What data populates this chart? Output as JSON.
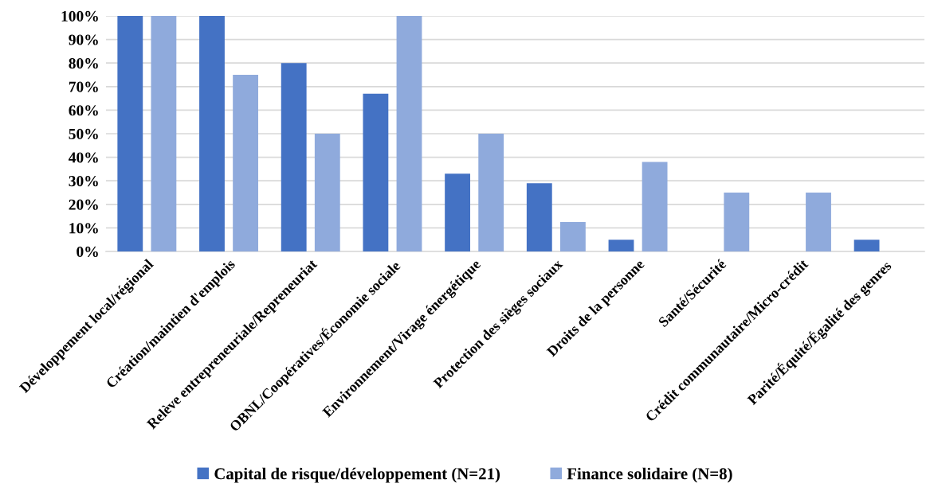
{
  "chart_data": {
    "type": "bar",
    "categories": [
      "Développement local/régional",
      "Création/maintien d'emplois",
      "Relève entrepreneuriale/Repreneuriat",
      "OBNL/Coopératives/Économie sociale",
      "Environnement/Virage énergétique",
      "Protection des sièges sociaux",
      "Droits de la personne",
      "Santé/Sécurité",
      "Crédit communautaire/Micro-crédit",
      "Parité/Équité/Égalité des genres"
    ],
    "series": [
      {
        "name": "Capital de risque/développement (N=21)",
        "color": "#4472c4",
        "values": [
          100,
          100,
          80,
          67,
          33,
          29,
          5,
          0,
          0,
          5
        ]
      },
      {
        "name": "Finance solidaire (N=8)",
        "color": "#8faadc",
        "values": [
          100,
          75,
          50,
          100,
          50,
          12.5,
          38,
          25,
          25,
          0
        ]
      }
    ],
    "ylim": [
      0,
      100
    ],
    "yticks": [
      {
        "value": 0,
        "label": "0%"
      },
      {
        "value": 10,
        "label": "10%"
      },
      {
        "value": 20,
        "label": "20%"
      },
      {
        "value": 30,
        "label": "30%"
      },
      {
        "value": 40,
        "label": "40%"
      },
      {
        "value": 50,
        "label": "50%"
      },
      {
        "value": 60,
        "label": "60%"
      },
      {
        "value": 70,
        "label": "70%"
      },
      {
        "value": 80,
        "label": "80%"
      },
      {
        "value": 90,
        "label": "90%"
      },
      {
        "value": 100,
        "label": "100%"
      }
    ],
    "grid": "y",
    "legend": "bottom"
  }
}
